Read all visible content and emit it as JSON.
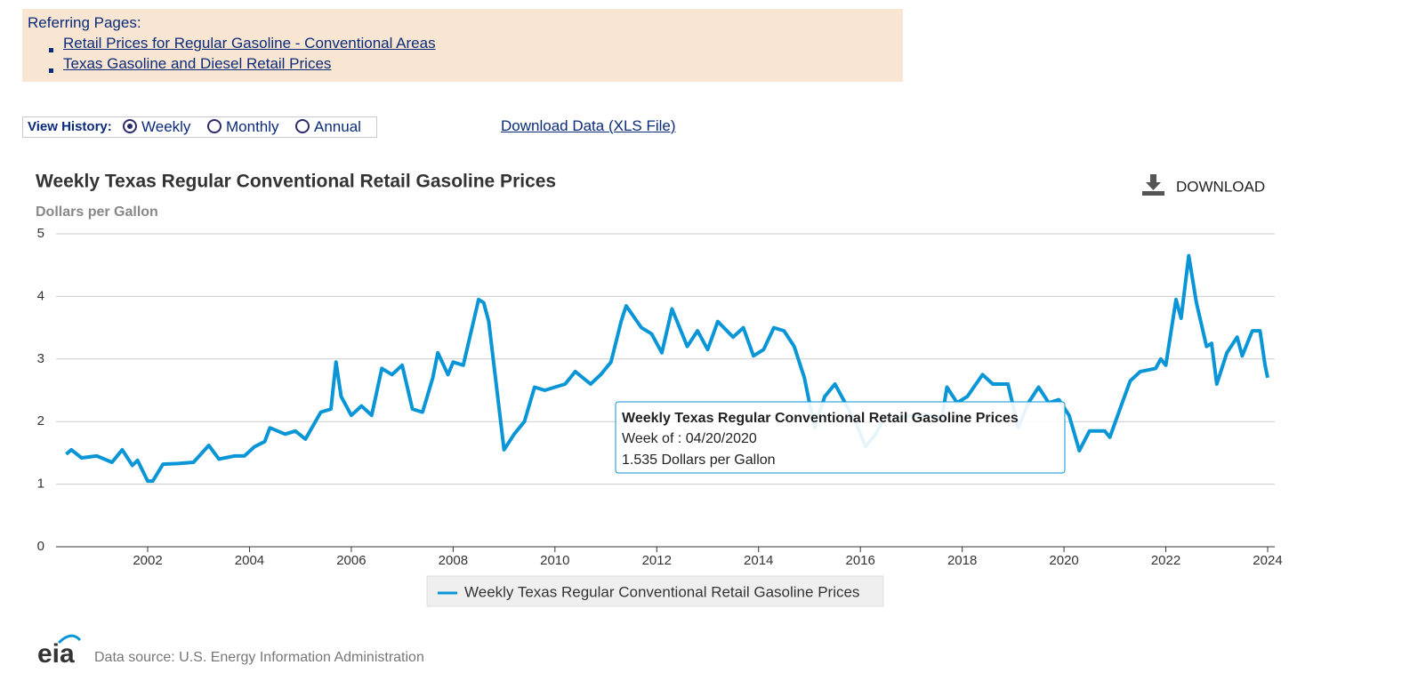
{
  "referring": {
    "heading": "Referring Pages:",
    "links": [
      "Retail Prices for Regular Gasoline - Conventional Areas",
      "Texas Gasoline and Diesel Retail Prices"
    ]
  },
  "history": {
    "label": "View History:",
    "options": [
      "Weekly",
      "Monthly",
      "Annual"
    ],
    "selected_index": 0
  },
  "download_data": "Download Data (XLS File)",
  "chart_data": {
    "type": "line",
    "title": "Weekly Texas Regular Conventional Retail Gasoline Prices",
    "y_label": "Dollars per Gallon",
    "download": "DOWNLOAD",
    "x": [
      2000.4,
      2000.5,
      2000.7,
      2001.0,
      2001.3,
      2001.5,
      2001.7,
      2001.8,
      2002.0,
      2002.1,
      2002.3,
      2002.6,
      2002.9,
      2003.2,
      2003.4,
      2003.7,
      2003.9,
      2004.1,
      2004.3,
      2004.4,
      2004.7,
      2004.9,
      2005.1,
      2005.4,
      2005.6,
      2005.7,
      2005.8,
      2006.0,
      2006.2,
      2006.4,
      2006.6,
      2006.8,
      2007.0,
      2007.2,
      2007.4,
      2007.6,
      2007.7,
      2007.9,
      2008.0,
      2008.2,
      2008.5,
      2008.6,
      2008.7,
      2009.0,
      2009.2,
      2009.4,
      2009.6,
      2009.8,
      2010.0,
      2010.2,
      2010.4,
      2010.7,
      2010.9,
      2011.1,
      2011.3,
      2011.4,
      2011.7,
      2011.9,
      2012.1,
      2012.3,
      2012.6,
      2012.8,
      2013.0,
      2013.2,
      2013.5,
      2013.7,
      2013.9,
      2014.1,
      2014.3,
      2014.5,
      2014.7,
      2014.9,
      2015.1,
      2015.3,
      2015.5,
      2015.7,
      2015.9,
      2016.1,
      2016.3,
      2016.5,
      2016.8,
      2017.0,
      2017.3,
      2017.6,
      2017.7,
      2017.9,
      2018.1,
      2018.4,
      2018.6,
      2018.9,
      2019.1,
      2019.3,
      2019.5,
      2019.7,
      2019.9,
      2020.1,
      2020.3,
      2020.5,
      2020.8,
      2020.9,
      2021.1,
      2021.3,
      2021.5,
      2021.8,
      2021.9,
      2022.0,
      2022.2,
      2022.3,
      2022.45,
      2022.6,
      2022.8,
      2022.9,
      2023.0,
      2023.2,
      2023.4,
      2023.5,
      2023.7,
      2023.85,
      2023.95,
      2024.0
    ],
    "series": [
      {
        "name": "Weekly Texas Regular Conventional Retail Gasoline Prices",
        "color": "#0a96d6",
        "values": [
          1.48,
          1.55,
          1.42,
          1.45,
          1.35,
          1.55,
          1.3,
          1.38,
          1.05,
          1.05,
          1.32,
          1.33,
          1.35,
          1.62,
          1.4,
          1.45,
          1.45,
          1.6,
          1.68,
          1.9,
          1.8,
          1.85,
          1.72,
          2.15,
          2.2,
          2.95,
          2.4,
          2.1,
          2.25,
          2.1,
          2.85,
          2.75,
          2.9,
          2.2,
          2.15,
          2.7,
          3.1,
          2.75,
          2.95,
          2.9,
          3.95,
          3.9,
          3.6,
          1.55,
          1.8,
          2.0,
          2.55,
          2.5,
          2.55,
          2.6,
          2.8,
          2.6,
          2.75,
          2.95,
          3.6,
          3.85,
          3.5,
          3.4,
          3.1,
          3.8,
          3.2,
          3.45,
          3.15,
          3.6,
          3.35,
          3.5,
          3.05,
          3.15,
          3.5,
          3.45,
          3.2,
          2.7,
          1.9,
          2.4,
          2.6,
          2.3,
          2.0,
          1.6,
          1.8,
          2.1,
          2.05,
          2.1,
          2.1,
          2.05,
          2.55,
          2.3,
          2.4,
          2.75,
          2.6,
          2.6,
          1.9,
          2.3,
          2.55,
          2.3,
          2.35,
          2.1,
          1.535,
          1.85,
          1.85,
          1.75,
          2.2,
          2.65,
          2.8,
          2.85,
          3.0,
          2.9,
          3.95,
          3.65,
          4.65,
          3.9,
          3.2,
          3.25,
          2.6,
          3.1,
          3.35,
          3.05,
          3.45,
          3.45,
          2.9,
          2.7
        ]
      }
    ],
    "xlim": [
      2000.2,
      2024.14
    ],
    "xticks": [
      2002,
      2004,
      2006,
      2008,
      2010,
      2012,
      2014,
      2016,
      2018,
      2020,
      2022,
      2024
    ],
    "ylim": [
      0,
      5
    ],
    "yticks": [
      0,
      1,
      2,
      3,
      4,
      5
    ],
    "grid": true,
    "tooltip": {
      "title": "Weekly Texas Regular Conventional Retail Gasoline Prices",
      "week": "Week of : 04/20/2020",
      "value": "1.535 Dollars per Gallon"
    },
    "source": "Data source: U.S. Energy Information Administration",
    "logo": "eia"
  }
}
